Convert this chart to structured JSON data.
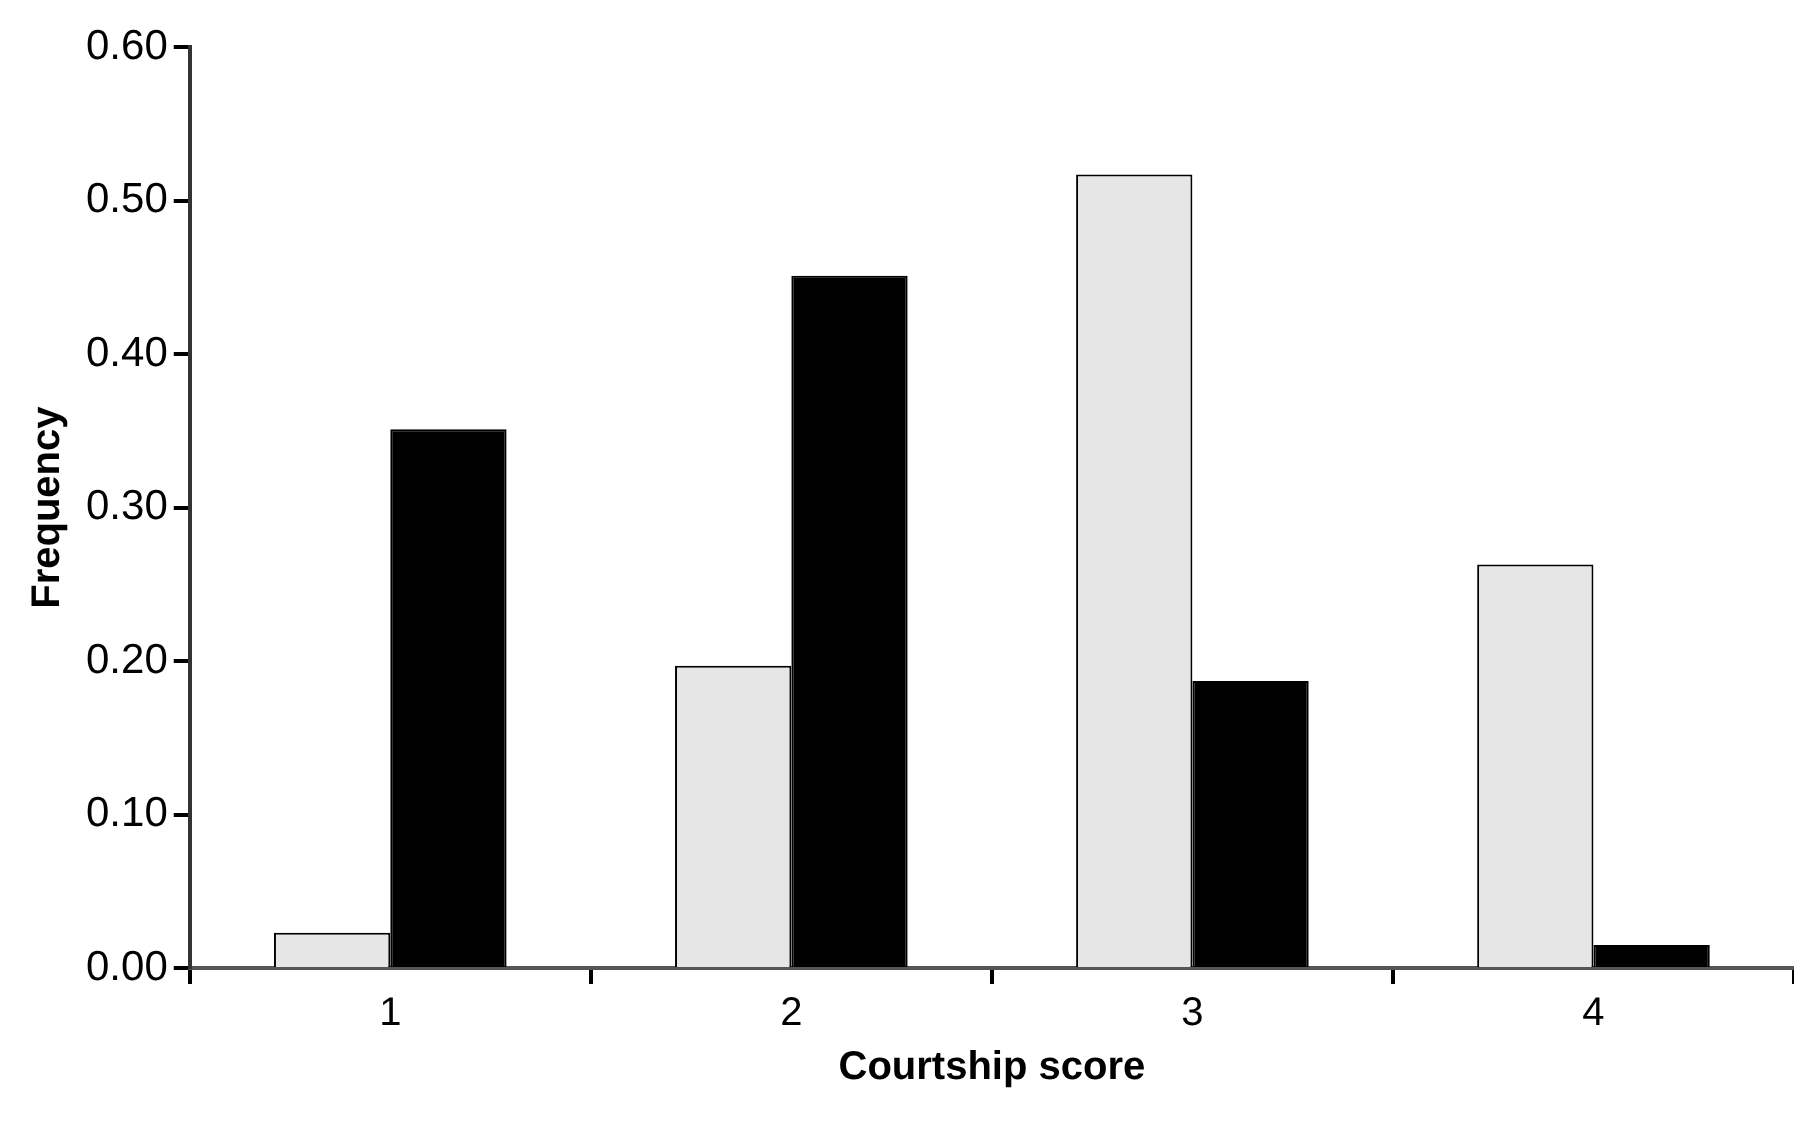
{
  "chart_data": {
    "type": "bar",
    "xlabel": "Courtship score",
    "ylabel": "Frequency",
    "categories": [
      "1",
      "2",
      "3",
      "4"
    ],
    "series": [
      {
        "color": "#e6e6e6",
        "values": [
          0.023,
          0.197,
          0.517,
          0.263
        ]
      },
      {
        "color": "#000000",
        "values": [
          0.351,
          0.451,
          0.187,
          0.015
        ]
      }
    ],
    "ylim": [
      0,
      0.6
    ],
    "yticks": [
      {
        "value": 0,
        "label": "0.00"
      },
      {
        "value": 0.1,
        "label": "0.10"
      },
      {
        "value": 0.2,
        "label": "0.20"
      },
      {
        "value": 0.3,
        "label": "0.30"
      },
      {
        "value": 0.4,
        "label": "0.40"
      },
      {
        "value": 0.5,
        "label": "0.50"
      },
      {
        "value": 0.6,
        "label": "0.60"
      }
    ],
    "grid": false,
    "legend": false
  }
}
